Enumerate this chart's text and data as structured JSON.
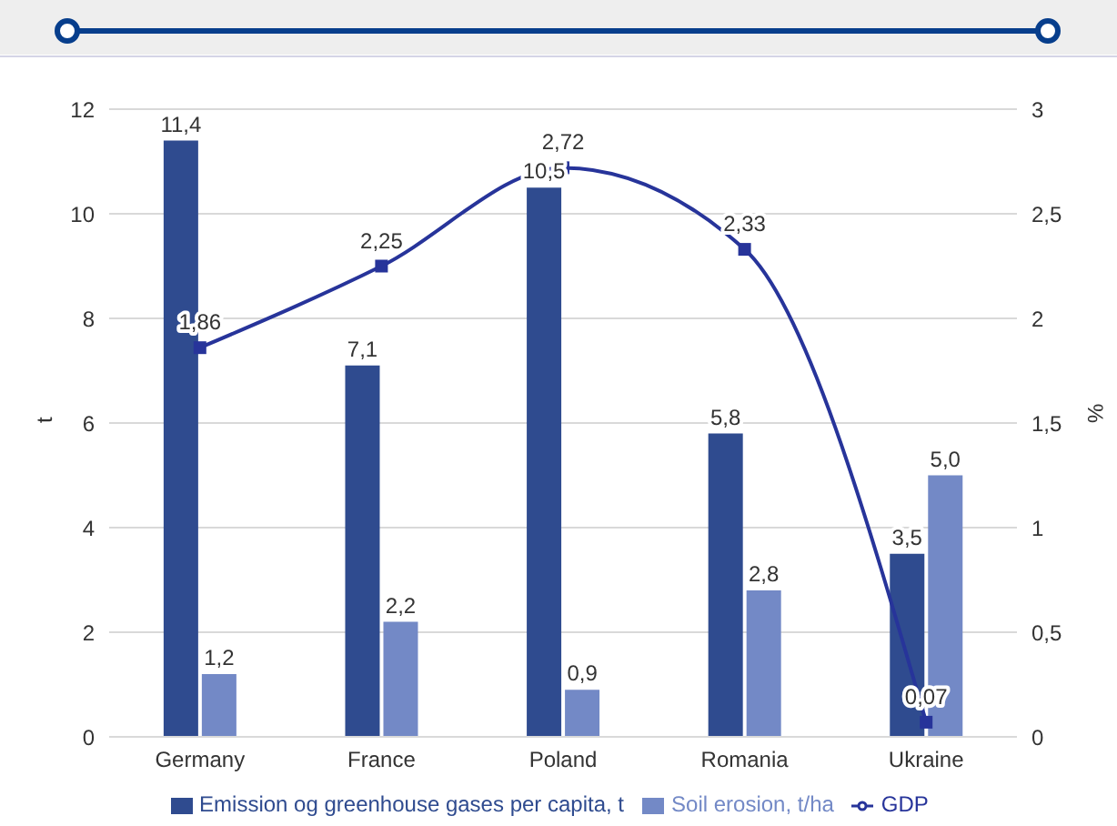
{
  "chart_data": {
    "type": "bar",
    "ylabel": "t",
    "y2label": "%",
    "categories": [
      "Germany",
      "France",
      "Poland",
      "Romania",
      "Ukraine"
    ],
    "series": [
      {
        "name": "Emission og greenhouse gases per capita, t",
        "color": "#2f4b8f",
        "values": [
          11.4,
          7.1,
          10.5,
          5.8,
          3.5
        ],
        "value_labels": [
          "11,4",
          "7,1",
          "10,5",
          "5,8",
          "3,5"
        ]
      },
      {
        "name": "Soil erosion, t/ha",
        "color": "#7389c6",
        "values": [
          1.2,
          2.2,
          0.9,
          2.8,
          5.0
        ],
        "value_labels": [
          "1,2",
          "2,2",
          "0,9",
          "2,8",
          "5,0"
        ]
      },
      {
        "name": "GDP",
        "type": "line",
        "axis": "y2",
        "color": "#27349a",
        "marker": "square",
        "values": [
          1.86,
          2.25,
          2.72,
          2.33,
          0.07
        ],
        "value_labels": [
          "1,86",
          "2,25",
          "2,72",
          "2,33",
          "0,07"
        ]
      }
    ],
    "ylim": [
      0,
      12
    ],
    "yticks": [
      0,
      2,
      4,
      6,
      8,
      10,
      12
    ],
    "y2lim": [
      0,
      3
    ],
    "y2ticks": [
      0,
      {
        "value": 0.5,
        "label": "0,5"
      },
      1,
      {
        "value": 1.5,
        "label": "1,5"
      },
      2,
      {
        "value": 2.5,
        "label": "2,5"
      },
      3
    ],
    "grid": "y",
    "legend": "bottom"
  }
}
